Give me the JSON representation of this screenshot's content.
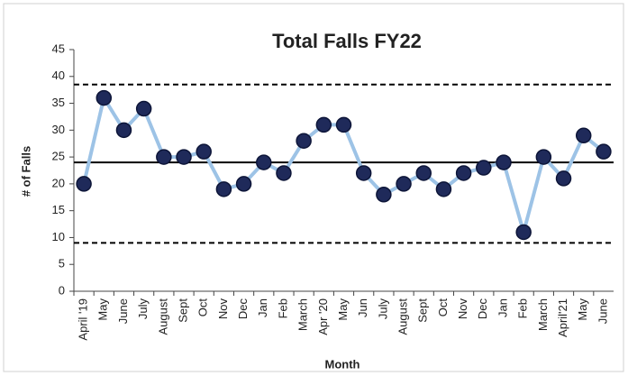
{
  "chart_data": {
    "type": "line",
    "title": "Total Falls FY22",
    "x_label": "Month",
    "y_label": "# of Falls",
    "categories": [
      "April '19",
      "May",
      "June",
      "July",
      "August",
      "Sept",
      "Oct",
      "Nov",
      "Dec",
      "Jan",
      "Feb",
      "March",
      "Apr '20",
      "May",
      "Jun",
      "July",
      "August",
      "Sept",
      "Oct",
      "Nov",
      "Dec",
      "Jan",
      "Feb",
      "March",
      "April'21",
      "May",
      "June"
    ],
    "series": [
      {
        "name": "Falls",
        "color": "#9dc3e6",
        "marker_color": "#1f2a5a",
        "values": [
          20,
          36,
          30,
          34,
          25,
          25,
          26,
          19,
          20,
          24,
          22,
          28,
          31,
          31,
          22,
          18,
          20,
          22,
          19,
          22,
          23,
          24,
          11,
          25,
          21,
          29,
          26
        ]
      }
    ],
    "mean": 24,
    "ucl": 38.5,
    "lcl": 9,
    "ylim": [
      0,
      45
    ],
    "yticks": [
      0,
      5,
      10,
      15,
      20,
      25,
      30,
      35,
      40,
      45
    ],
    "grid": false
  }
}
